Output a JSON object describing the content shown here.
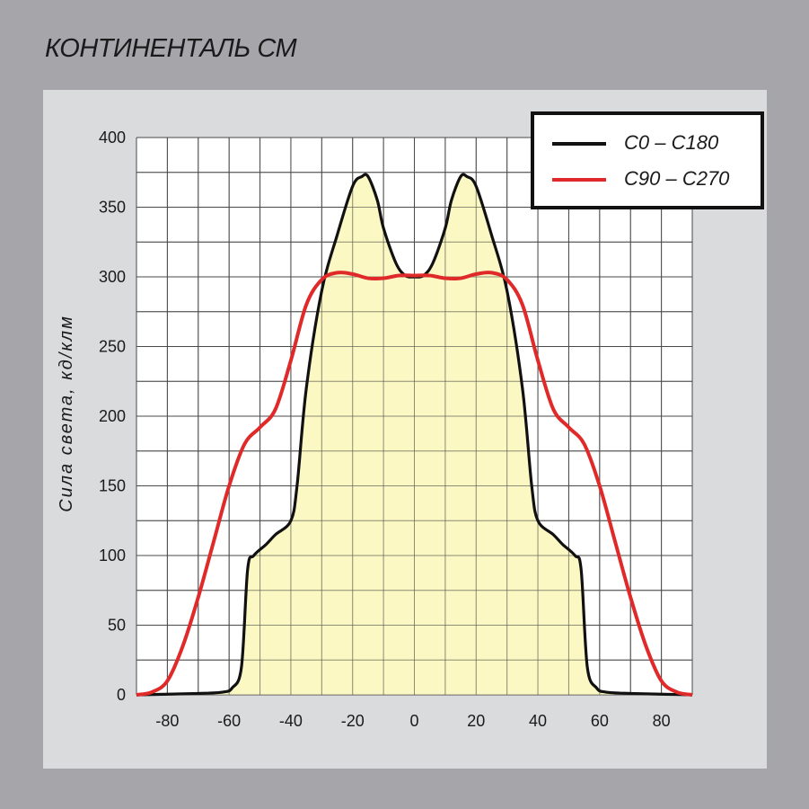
{
  "title": "КОНТИНЕНТАЛЬ СМ",
  "chart_data": {
    "type": "area",
    "title": "",
    "xlabel": "",
    "ylabel": "Сила света, кд/клм",
    "xlim": [
      -90,
      90
    ],
    "ylim": [
      0,
      400
    ],
    "xticks": [
      -80,
      -60,
      -40,
      -20,
      0,
      20,
      40,
      60,
      80
    ],
    "xtick_labels": [
      "-80",
      "-60",
      "-40",
      "-20",
      "0",
      "20",
      "40",
      "60",
      "80"
    ],
    "yticks": [
      0,
      50,
      100,
      150,
      200,
      250,
      300,
      350,
      400
    ],
    "ytick_labels": [
      "0",
      "50",
      "100",
      "150",
      "200",
      "250",
      "300",
      "350",
      "400"
    ],
    "grid": true,
    "legend_position": "top-right",
    "series": [
      {
        "name": "C0 – C180",
        "color": "#111111",
        "fill": "#faf7b8",
        "x": [
          -90,
          -70,
          -62,
          -59,
          -56,
          -54,
          -52,
          -48,
          -45,
          -40,
          -38,
          -35,
          -30,
          -25,
          -20,
          -17,
          -15,
          -12,
          -10,
          -6,
          -3,
          0,
          3,
          6,
          10,
          12,
          15,
          17,
          20,
          25,
          30,
          35,
          38,
          40,
          45,
          48,
          52,
          54,
          56,
          59,
          62,
          70,
          90
        ],
        "y": [
          0,
          1,
          2,
          5,
          20,
          90,
          100,
          108,
          115,
          125,
          150,
          220,
          290,
          330,
          365,
          372,
          372,
          355,
          335,
          310,
          301,
          300,
          301,
          310,
          335,
          355,
          372,
          372,
          365,
          330,
          290,
          220,
          150,
          125,
          115,
          108,
          100,
          90,
          20,
          5,
          2,
          1,
          0
        ]
      },
      {
        "name": "C90 – C270",
        "color": "#e02a2a",
        "x": [
          -90,
          -85,
          -80,
          -75,
          -70,
          -65,
          -60,
          -55,
          -50,
          -45,
          -40,
          -35,
          -30,
          -25,
          -20,
          -15,
          -10,
          -5,
          0,
          5,
          10,
          15,
          20,
          25,
          30,
          35,
          40,
          45,
          50,
          55,
          60,
          65,
          70,
          75,
          80,
          85,
          90
        ],
        "y": [
          0,
          2,
          10,
          35,
          70,
          110,
          150,
          180,
          192,
          205,
          240,
          280,
          298,
          303,
          302,
          299,
          299,
          301,
          301,
          301,
          299,
          299,
          302,
          303,
          298,
          280,
          240,
          205,
          192,
          180,
          150,
          110,
          70,
          35,
          10,
          2,
          0
        ]
      }
    ]
  }
}
